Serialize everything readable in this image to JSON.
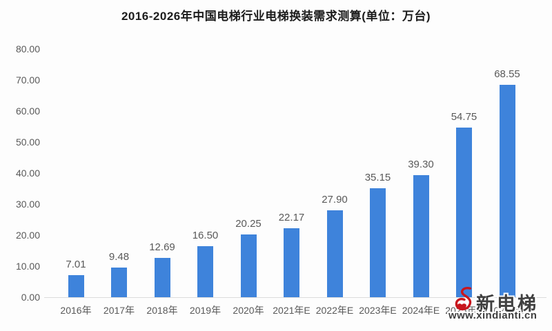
{
  "chart_data": {
    "type": "bar",
    "title": "2016-2026年中国电梯行业电梯换装需求测算(单位：万台)",
    "categories": [
      "2016年",
      "2017年",
      "2018年",
      "2019年",
      "2020年",
      "2021年E",
      "2022年E",
      "2023年E",
      "2024年E",
      "2025年E",
      "2026年E"
    ],
    "values": [
      7.01,
      9.48,
      12.69,
      16.5,
      20.25,
      22.17,
      27.9,
      35.15,
      39.3,
      54.75,
      68.55
    ],
    "value_labels": [
      "7.01",
      "9.48",
      "12.69",
      "16.50",
      "20.25",
      "22.17",
      "27.90",
      "35.15",
      "39.30",
      "54.75",
      "68.55"
    ],
    "xlabel": "",
    "ylabel": "",
    "ylim": [
      0,
      80
    ],
    "ytick_labels": [
      "0.00",
      "10.00",
      "20.00",
      "30.00",
      "40.00",
      "50.00",
      "60.00",
      "70.00",
      "80.00"
    ],
    "grid": false,
    "legend_position": "none",
    "bar_color": "#3e83db",
    "axis_label_color": "#595959",
    "title_color": "#1c1c1c"
  },
  "watermark": {
    "name": "新电梯",
    "url": "www.xindianti.cn",
    "logo_color": "#c8161d",
    "text_color": "#404040"
  }
}
